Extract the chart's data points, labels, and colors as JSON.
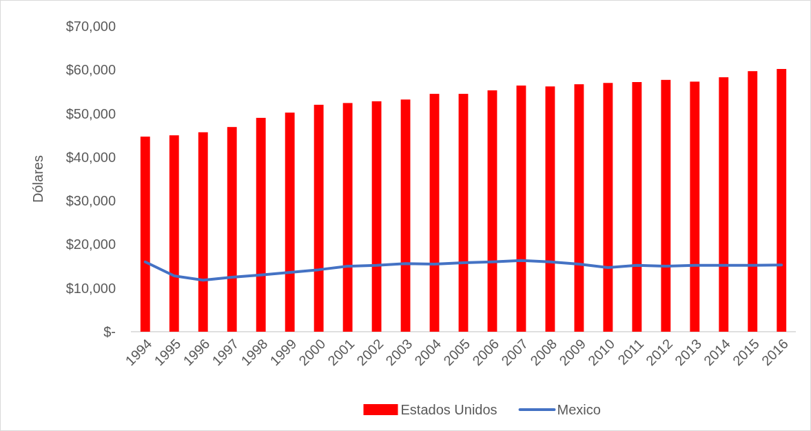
{
  "chart_data": {
    "type": "bar",
    "ylabel": "Dólares",
    "categories": [
      "1994",
      "1995",
      "1996",
      "1997",
      "1998",
      "1999",
      "2000",
      "2001",
      "2002",
      "2003",
      "2004",
      "2005",
      "2006",
      "2007",
      "2008",
      "2009",
      "2010",
      "2011",
      "2012",
      "2013",
      "2014",
      "2015",
      "2016"
    ],
    "series": [
      {
        "name": "Estados Unidos",
        "color": "#ff0000",
        "values": [
          44700,
          45000,
          45700,
          46900,
          49000,
          50200,
          52000,
          52400,
          52800,
          53200,
          54500,
          54500,
          55300,
          56400,
          56200,
          56700,
          57000,
          57200,
          57700,
          57300,
          58300,
          59700,
          60200
        ]
      },
      {
        "name": "Mexico",
        "type": "line",
        "color": "#4472c4",
        "values": [
          16000,
          12800,
          11800,
          12500,
          13000,
          13600,
          14200,
          15000,
          15200,
          15600,
          15500,
          15800,
          16000,
          16300,
          16000,
          15500,
          14700,
          15200,
          15000,
          15200,
          15200,
          15200,
          15300
        ]
      }
    ],
    "ylim": [
      0,
      70000
    ],
    "yticks": [
      {
        "value": 0,
        "label": "$-"
      },
      {
        "value": 10000,
        "label": "$10,000"
      },
      {
        "value": 20000,
        "label": "$20,000"
      },
      {
        "value": 30000,
        "label": "$30,000"
      },
      {
        "value": 40000,
        "label": "$40,000"
      },
      {
        "value": 50000,
        "label": "$50,000"
      },
      {
        "value": 60000,
        "label": "$60,000"
      },
      {
        "value": 70000,
        "label": "$70,000"
      }
    ],
    "grid": false,
    "legend": "bottom",
    "marker": "none",
    "line_style": "solid"
  }
}
